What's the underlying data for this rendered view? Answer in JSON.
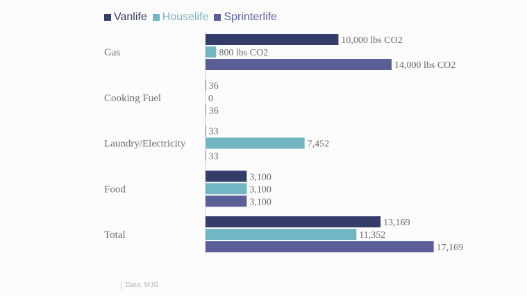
{
  "chart_data": {
    "type": "bar",
    "orientation": "horizontal",
    "categories": [
      "Gas",
      "Cooking Fuel",
      "Laundry/Electricity",
      "Food",
      "Total"
    ],
    "series": [
      {
        "name": "Vanlife",
        "color": "#343c6a",
        "values": [
          10000,
          36,
          33,
          3100,
          13169
        ],
        "labels": [
          "10,000 lbs CO2",
          "36",
          "33",
          "3,100",
          "13,169"
        ]
      },
      {
        "name": "Houselife",
        "color": "#72b6c3",
        "values": [
          800,
          0,
          7452,
          3100,
          11352
        ],
        "labels": [
          "800 lbs CO2",
          "0",
          "7,452",
          "3,100",
          "11,352"
        ]
      },
      {
        "name": "Sprinterlife",
        "color": "#5a5f98",
        "values": [
          14000,
          36,
          33,
          3100,
          17169
        ],
        "labels": [
          "14,000 lbs CO2",
          "36",
          "33",
          "3,100",
          "17,169"
        ]
      }
    ],
    "legend_position": "top-left",
    "grid": false
  },
  "source_note": "Data: MJG"
}
